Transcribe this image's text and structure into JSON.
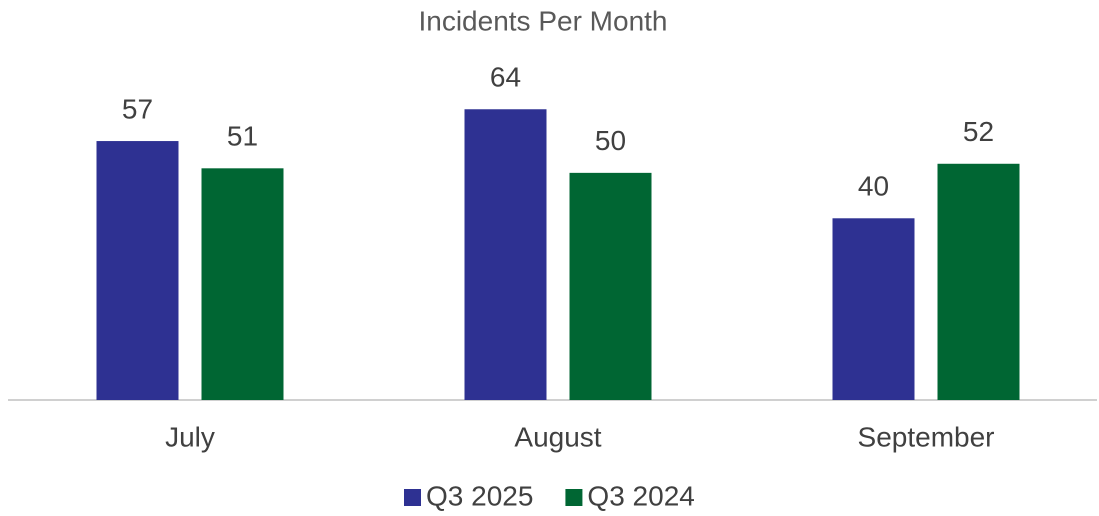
{
  "chart_data": {
    "type": "bar",
    "title": "Incidents Per Month",
    "categories": [
      "July",
      "August",
      "September"
    ],
    "series": [
      {
        "name": "Q3 2025",
        "color": "#2e3192",
        "values": [
          57,
          64,
          40
        ]
      },
      {
        "name": "Q3 2024",
        "color": "#006633",
        "values": [
          51,
          50,
          52
        ]
      }
    ],
    "ylim": [
      0,
      70
    ]
  }
}
